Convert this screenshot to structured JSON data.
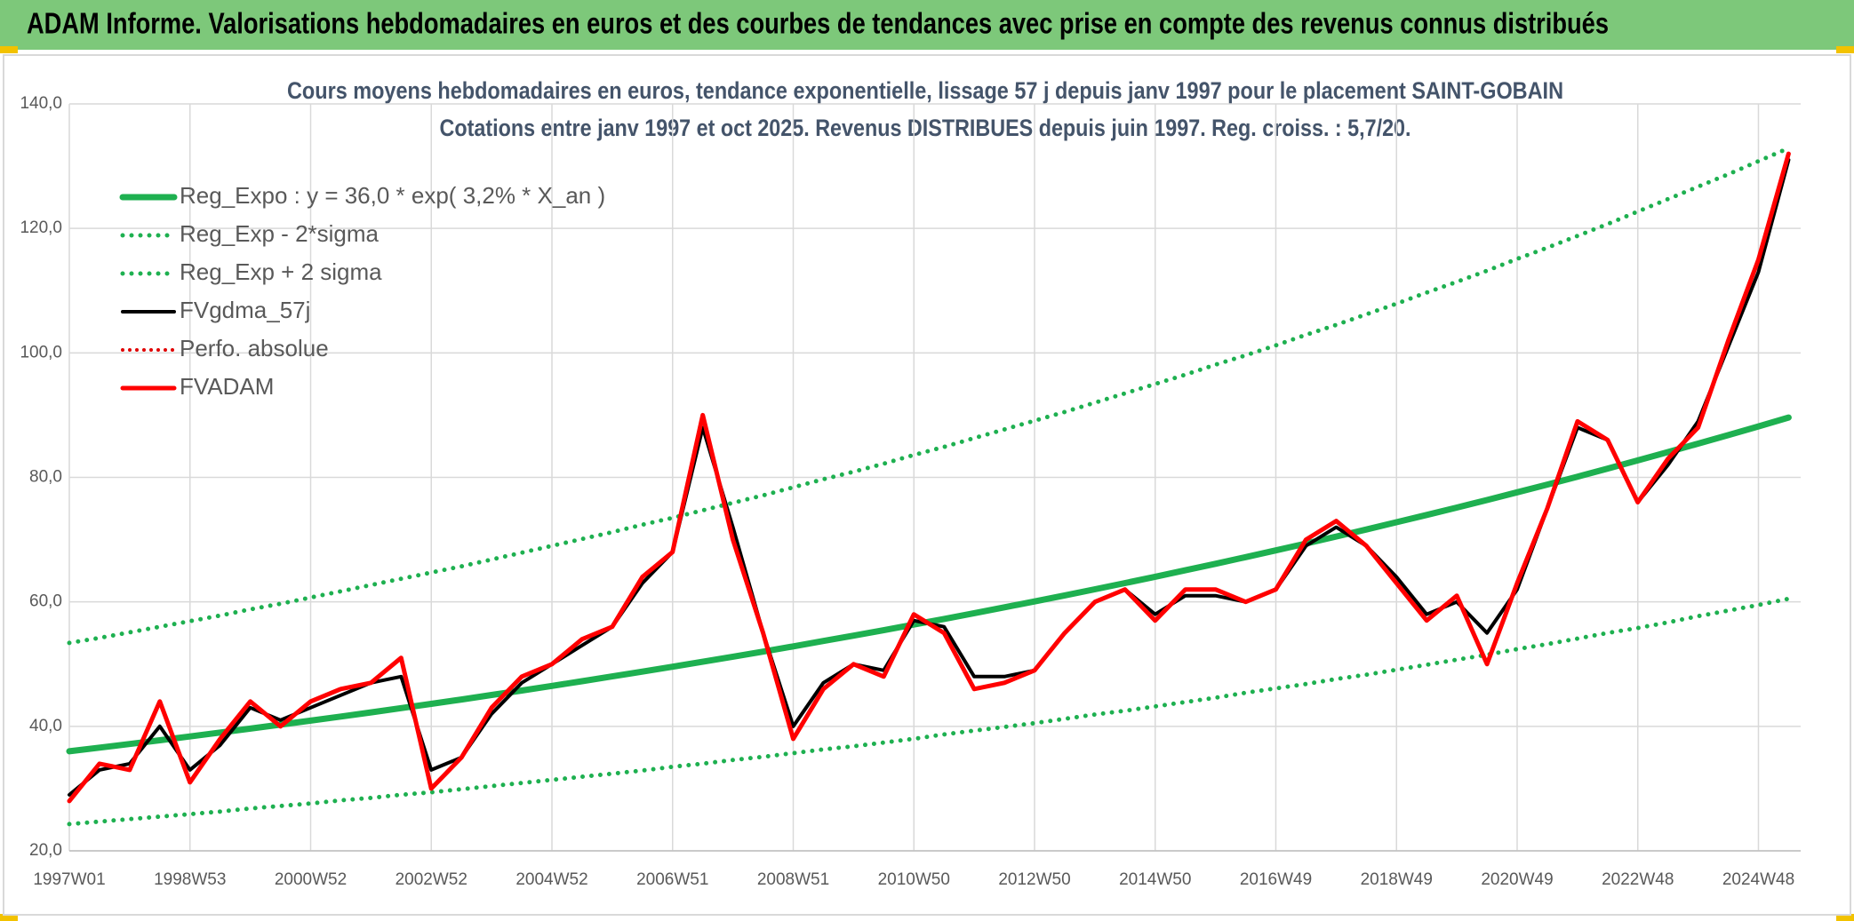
{
  "header": {
    "title": "ADAM Informe. Valorisations hebdomadaires en euros et des courbes de tendances avec prise en compte des revenus connus distribués"
  },
  "chart_data": {
    "type": "line",
    "title": "Cours moyens hebdomadaires en euros, tendance exponentielle, lissage 57 j depuis janv 1997 pour le placement SAINT-GOBAIN",
    "subtitle": "Cotations entre janv 1997 et oct 2025. Revenus DISTRIBUES depuis juin 1997. Reg. croiss. : 5,7/20.",
    "categories": [
      "1997W01",
      null,
      null,
      null,
      "1998W53",
      null,
      null,
      null,
      "2000W52",
      null,
      null,
      null,
      "2002W52",
      null,
      null,
      null,
      "2004W52",
      null,
      null,
      null,
      "2006W51",
      null,
      null,
      null,
      "2008W51",
      null,
      null,
      null,
      "2010W50",
      null,
      null,
      null,
      "2012W50",
      null,
      null,
      null,
      "2014W50",
      null,
      null,
      null,
      "2016W49",
      null,
      null,
      null,
      "2018W49",
      null,
      null,
      null,
      "2020W49",
      null,
      null,
      null,
      "2022W48",
      null,
      null,
      null,
      "2024W48",
      null
    ],
    "ylim": [
      20,
      140
    ],
    "yticks": [
      {
        "value": 20,
        "label": "20,0"
      },
      {
        "value": 40,
        "label": "40,0"
      },
      {
        "value": 60,
        "label": "60,0"
      },
      {
        "value": 80,
        "label": "80,0"
      },
      {
        "value": 100,
        "label": "100,0"
      },
      {
        "value": 120,
        "label": "120,0"
      },
      {
        "value": 140,
        "label": "140,0"
      }
    ],
    "grid": true,
    "legend": "upper left",
    "series": [
      {
        "name": "Reg_Expo : y = 36,0 * exp( 3,2% *  X_an )",
        "color": "#1eb050",
        "style": "solid",
        "width": 7,
        "values": [
          36.0,
          36.58,
          37.17,
          37.77,
          38.38,
          39.0,
          39.63,
          40.27,
          40.92,
          41.58,
          42.25,
          42.93,
          43.62,
          44.32,
          45.04,
          45.76,
          46.5,
          47.25,
          48.02,
          48.79,
          49.58,
          50.38,
          51.19,
          52.01,
          52.85,
          53.71,
          54.57,
          55.45,
          56.35,
          57.26,
          58.18,
          59.12,
          60.07,
          61.04,
          62.02,
          63.02,
          64.04,
          65.07,
          66.12,
          67.19,
          68.27,
          69.37,
          70.49,
          71.63,
          72.79,
          73.96,
          75.15,
          76.36,
          77.6,
          78.85,
          80.12,
          81.41,
          82.72,
          84.06,
          85.42,
          86.79,
          88.19,
          89.61
        ]
      },
      {
        "name": "Reg_Exp - 2*sigma",
        "color": "#1eb050",
        "style": "dotted",
        "width": 5,
        "values": [
          24.3,
          24.7,
          25.1,
          25.5,
          25.9,
          26.3,
          26.8,
          27.2,
          27.6,
          28.1,
          28.5,
          29.0,
          29.4,
          29.9,
          30.4,
          30.9,
          31.4,
          31.9,
          32.4,
          32.9,
          33.5,
          34.0,
          34.6,
          35.1,
          35.7,
          36.3,
          36.8,
          37.4,
          38.0,
          38.7,
          39.3,
          39.9,
          40.5,
          41.2,
          41.9,
          42.5,
          43.2,
          43.9,
          44.6,
          45.4,
          46.1,
          46.8,
          47.6,
          48.3,
          49.1,
          49.9,
          50.7,
          51.5,
          52.4,
          53.2,
          54.1,
          55.0,
          55.8,
          56.7,
          57.7,
          58.6,
          59.5,
          60.5
        ]
      },
      {
        "name": "Reg_Exp + 2 sigma",
        "color": "#1eb050",
        "style": "dotted",
        "width": 5,
        "values": [
          53.4,
          54.2,
          55.1,
          56.0,
          56.9,
          57.8,
          58.8,
          59.7,
          60.7,
          61.7,
          62.7,
          63.7,
          64.7,
          65.7,
          66.8,
          67.9,
          69.0,
          70.1,
          71.2,
          72.4,
          73.5,
          74.7,
          75.9,
          77.1,
          78.4,
          79.7,
          80.9,
          82.2,
          83.6,
          84.9,
          86.3,
          87.7,
          89.1,
          90.5,
          92.0,
          93.5,
          95.0,
          96.5,
          98.1,
          99.6,
          101.2,
          102.9,
          104.5,
          106.2,
          107.9,
          109.7,
          111.4,
          113.2,
          115.1,
          116.9,
          118.8,
          120.7,
          122.7,
          124.7,
          126.7,
          128.7,
          130.8,
          132.9
        ]
      },
      {
        "name": "FVgdma_57j",
        "color": "#000000",
        "style": "solid",
        "width": 4,
        "values": [
          29,
          33,
          34,
          40,
          33,
          37,
          43,
          41,
          43,
          45,
          47,
          48,
          33,
          35,
          42,
          47,
          50,
          53,
          56,
          63,
          68,
          88,
          72,
          55,
          40,
          47,
          50,
          49,
          57,
          56,
          48,
          48,
          49,
          55,
          60,
          62,
          58,
          61,
          61,
          60,
          62,
          69,
          72,
          69,
          64,
          58,
          60,
          55,
          62,
          75,
          88,
          86,
          76,
          82,
          89,
          101,
          113,
          131
        ]
      },
      {
        "name": "Perfo. absolue",
        "color": "#e00000",
        "style": "dotted",
        "width": 4,
        "values": [
          null,
          null,
          null,
          null,
          null,
          null,
          null,
          null,
          null,
          null,
          null,
          null,
          null,
          null,
          null,
          null,
          null,
          null,
          null,
          null,
          null,
          null,
          null,
          null,
          null,
          null,
          null,
          null,
          null,
          null,
          null,
          null,
          null,
          null,
          null,
          null,
          null,
          null,
          null,
          null,
          null,
          null,
          null,
          null,
          null,
          null,
          null,
          null,
          null,
          null,
          null,
          null,
          null,
          null,
          null,
          null,
          null,
          null
        ]
      },
      {
        "name": "FVADAM",
        "color": "#ff0000",
        "style": "solid",
        "width": 5,
        "values": [
          28,
          34,
          33,
          44,
          31,
          38,
          44,
          40,
          44,
          46,
          47,
          51,
          30,
          35,
          43,
          48,
          50,
          54,
          56,
          64,
          68,
          90,
          70,
          55,
          38,
          46,
          50,
          48,
          58,
          55,
          46,
          47,
          49,
          55,
          60,
          62,
          57,
          62,
          62,
          60,
          62,
          70,
          73,
          69,
          63,
          57,
          61,
          50,
          63,
          75,
          89,
          86,
          76,
          83,
          88,
          102,
          115,
          132
        ]
      }
    ]
  }
}
